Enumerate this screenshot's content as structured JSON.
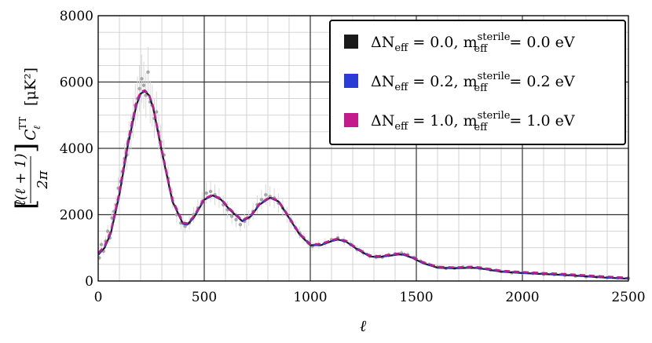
{
  "chart_data": {
    "type": "line",
    "xlabel": "ℓ",
    "ylabel": "[ℓ(ℓ+1)/2π] C_ℓ^TT [μK²]",
    "ylabel_parts": {
      "left": "ℓ(ℓ + 1)",
      "den": "2π",
      "c": "C",
      "sub": "ℓ",
      "sup": "TT",
      "unit": "[μK²]"
    },
    "xlim": [
      0,
      2500
    ],
    "ylim": [
      0,
      8000
    ],
    "x_ticks": [
      "0",
      "500",
      "1000",
      "1500",
      "2000",
      "2500"
    ],
    "y_ticks": [
      "0",
      "2000",
      "4000",
      "6000",
      "8000"
    ],
    "grid": true,
    "legend_position": "top-right",
    "series": [
      {
        "name": "ΔN_eff = 0.0, m_eff^sterile = 0.0 eV",
        "label_parts": {
          "a": "ΔN",
          "a_sub": "eff",
          "b": " = 0.0, m",
          "b_sub": "eff",
          "b_sup": "sterile",
          "c": " = 0.0 eV"
        },
        "color": "#1a1a1a",
        "style": "solid",
        "x": [
          2,
          30,
          60,
          100,
          140,
          180,
          200,
          220,
          240,
          260,
          300,
          350,
          400,
          420,
          450,
          500,
          540,
          580,
          620,
          680,
          720,
          760,
          810,
          850,
          900,
          950,
          1000,
          1050,
          1100,
          1130,
          1170,
          1220,
          1280,
          1320,
          1370,
          1420,
          1440,
          1480,
          1530,
          1600,
          1680,
          1760,
          1800,
          1850,
          1900,
          2000,
          2100,
          2200,
          2300,
          2400,
          2500
        ],
        "y": [
          800,
          1000,
          1450,
          2600,
          4100,
          5300,
          5650,
          5720,
          5600,
          5200,
          3900,
          2400,
          1720,
          1700,
          1900,
          2450,
          2580,
          2450,
          2150,
          1800,
          1950,
          2300,
          2510,
          2400,
          1900,
          1400,
          1080,
          1080,
          1200,
          1250,
          1180,
          960,
          740,
          720,
          760,
          800,
          790,
          700,
          540,
          400,
          380,
          400,
          380,
          330,
          280,
          240,
          210,
          180,
          140,
          100,
          70
        ]
      },
      {
        "name": "ΔN_eff = 0.2, m_eff^sterile = 0.2 eV",
        "label_parts": {
          "a": "ΔN",
          "a_sub": "eff",
          "b": " = 0.2, m",
          "b_sub": "eff",
          "b_sup": "sterile",
          "c": " = 0.2 eV"
        },
        "color": "#2a3bd6",
        "style": "dashed",
        "x": [
          2,
          30,
          60,
          100,
          140,
          180,
          200,
          220,
          240,
          260,
          300,
          350,
          400,
          420,
          450,
          500,
          540,
          580,
          620,
          680,
          720,
          760,
          810,
          850,
          900,
          950,
          1000,
          1050,
          1100,
          1130,
          1170,
          1220,
          1280,
          1320,
          1370,
          1420,
          1440,
          1480,
          1530,
          1600,
          1680,
          1760,
          1800,
          1850,
          1900,
          2000,
          2100,
          2200,
          2300,
          2400,
          2500
        ],
        "y": [
          820,
          1010,
          1460,
          2620,
          4120,
          5310,
          5660,
          5730,
          5610,
          5210,
          3910,
          2410,
          1730,
          1710,
          1910,
          2460,
          2590,
          2460,
          2160,
          1810,
          1960,
          2310,
          2520,
          2410,
          1910,
          1410,
          1090,
          1090,
          1210,
          1260,
          1190,
          970,
          750,
          730,
          770,
          810,
          800,
          710,
          550,
          410,
          390,
          410,
          390,
          340,
          290,
          250,
          220,
          190,
          150,
          110,
          80
        ]
      },
      {
        "name": "ΔN_eff = 1.0, m_eff^sterile = 1.0 eV",
        "label_parts": {
          "a": "ΔN",
          "a_sub": "eff",
          "b": " = 1.0, m",
          "b_sub": "eff",
          "b_sup": "sterile",
          "c": " = 1.0 eV"
        },
        "color": "#c41a8c",
        "style": "dashed",
        "x": [
          2,
          30,
          60,
          100,
          140,
          180,
          200,
          220,
          240,
          260,
          300,
          350,
          400,
          420,
          450,
          500,
          540,
          580,
          620,
          680,
          720,
          760,
          810,
          850,
          900,
          950,
          1000,
          1050,
          1100,
          1130,
          1170,
          1220,
          1280,
          1320,
          1370,
          1420,
          1440,
          1480,
          1530,
          1600,
          1680,
          1760,
          1800,
          1850,
          1900,
          2000,
          2100,
          2200,
          2300,
          2400,
          2500
        ],
        "y": [
          850,
          1050,
          1500,
          2680,
          4200,
          5380,
          5700,
          5750,
          5620,
          5230,
          3950,
          2450,
          1760,
          1740,
          1940,
          2480,
          2600,
          2470,
          2180,
          1830,
          1980,
          2330,
          2530,
          2420,
          1930,
          1430,
          1110,
          1110,
          1230,
          1280,
          1210,
          990,
          770,
          750,
          790,
          830,
          820,
          730,
          570,
          430,
          410,
          430,
          410,
          360,
          310,
          270,
          240,
          210,
          170,
          130,
          95
        ]
      }
    ],
    "observed_points": {
      "color": "#a6a6a6",
      "x": [
        5,
        15,
        25,
        35,
        45,
        55,
        65,
        75,
        85,
        95,
        105,
        115,
        125,
        135,
        145,
        155,
        165,
        175,
        185,
        195,
        205,
        215,
        225,
        235,
        245,
        255,
        265,
        275,
        285,
        295,
        310,
        330,
        350,
        370,
        390,
        410,
        430,
        450,
        470,
        490,
        510,
        530,
        550,
        570,
        590,
        610,
        630,
        650,
        670,
        690,
        710,
        730,
        750,
        770,
        790,
        810,
        830,
        850,
        870,
        890,
        910,
        930,
        950,
        970,
        990,
        1010,
        1040,
        1070,
        1100,
        1130,
        1160,
        1190,
        1220,
        1250,
        1280,
        1310,
        1340,
        1370,
        1400,
        1430,
        1460,
        1490,
        1520,
        1560,
        1600,
        1640,
        1680,
        1720,
        1760,
        1800,
        1850,
        1900,
        1950,
        2000,
        2050,
        2100,
        2150,
        2200,
        2250,
        2300,
        2350,
        2400,
        2450,
        2500
      ],
      "y": [
        700,
        1100,
        900,
        1200,
        1500,
        1300,
        1900,
        2100,
        2300,
        2800,
        3000,
        3300,
        3700,
        3800,
        4300,
        4500,
        4900,
        5300,
        5500,
        5800,
        6100,
        5900,
        5600,
        6300,
        5400,
        5300,
        4900,
        5100,
        4500,
        4200,
        3800,
        3100,
        2500,
        2000,
        1750,
        1650,
        1750,
        2000,
        2200,
        2400,
        2650,
        2700,
        2600,
        2500,
        2300,
        2150,
        1950,
        1850,
        1700,
        1800,
        1900,
        2100,
        2300,
        2450,
        2600,
        2550,
        2500,
        2350,
        2200,
        2000,
        1800,
        1600,
        1450,
        1300,
        1150,
        1050,
        1100,
        1150,
        1250,
        1300,
        1200,
        1100,
        950,
        850,
        760,
        720,
        720,
        780,
        820,
        840,
        790,
        700,
        600,
        500,
        420,
        380,
        390,
        420,
        410,
        370,
        330,
        290,
        250,
        240,
        230,
        200,
        190,
        170,
        150,
        130,
        120,
        100,
        90,
        80
      ]
    }
  }
}
